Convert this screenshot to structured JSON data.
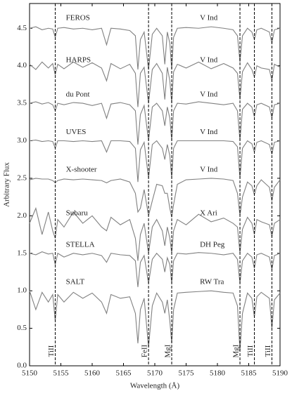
{
  "chart_data": {
    "type": "line",
    "x_label": "Wavelength (Å)",
    "y_label": "Arbitrary Flux",
    "xlim": [
      5150,
      5190
    ],
    "ylim": [
      0,
      4.83
    ],
    "xticks": [
      5150,
      5155,
      5160,
      5165,
      5170,
      5175,
      5180,
      5185,
      5190
    ],
    "yticks": [
      {
        "value": 0,
        "label": "0.0"
      },
      0.5,
      {
        "value": 1,
        "label": "1.0"
      },
      1.5,
      {
        "value": 2,
        "label": "2.0"
      },
      2.5,
      {
        "value": 3,
        "label": "3.0"
      },
      3.5,
      {
        "value": 4,
        "label": "4.0"
      },
      4.5
    ],
    "line_markers": [
      {
        "x": 5154.1,
        "label": "TiII"
      },
      {
        "x": 5169.0,
        "label": "FeII"
      },
      {
        "x": 5172.7,
        "label": "MgI"
      },
      {
        "x": 5183.6,
        "label": "MgI"
      },
      {
        "x": 5185.9,
        "label": "TiII"
      },
      {
        "x": 5188.7,
        "label": "TiII"
      }
    ],
    "x": [
      5150,
      5151,
      5152,
      5153,
      5153.7,
      5154.1,
      5154.5,
      5155.5,
      5157,
      5158.5,
      5160,
      5161.5,
      5162.3,
      5163,
      5164.5,
      5166,
      5166.9,
      5167.3,
      5167.7,
      5168.3,
      5169.0,
      5169.6,
      5170.3,
      5171.2,
      5171.6,
      5172.0,
      5172.4,
      5172.7,
      5173.0,
      5173.6,
      5175,
      5177,
      5179,
      5181,
      5182.5,
      5183.2,
      5183.6,
      5184.0,
      5184.8,
      5185.5,
      5185.9,
      5186.3,
      5187,
      5188.3,
      5188.7,
      5189.1,
      5190
    ],
    "series": [
      {
        "name": "FEROS",
        "label": "V Ind",
        "color": "#808080",
        "values": [
          4.5,
          4.52,
          4.48,
          4.5,
          4.49,
          4.38,
          4.5,
          4.51,
          4.49,
          4.5,
          4.48,
          4.5,
          4.28,
          4.5,
          4.49,
          4.47,
          4.4,
          3.95,
          4.35,
          4.45,
          3.95,
          4.42,
          4.5,
          4.4,
          4.02,
          4.45,
          4.3,
          3.95,
          4.38,
          4.5,
          4.51,
          4.5,
          4.52,
          4.5,
          4.48,
          4.4,
          4.05,
          4.4,
          4.5,
          4.45,
          4.35,
          4.48,
          4.5,
          4.45,
          4.3,
          4.48,
          4.5
        ]
      },
      {
        "name": "HARPS",
        "label": "V Ind",
        "color": "#808080",
        "values": [
          4.02,
          3.95,
          4.05,
          3.97,
          4.03,
          3.88,
          4.02,
          3.96,
          4.05,
          3.98,
          4.04,
          3.97,
          3.8,
          4.03,
          3.96,
          4.02,
          3.9,
          3.45,
          3.9,
          3.98,
          3.5,
          3.95,
          4.03,
          3.9,
          3.55,
          3.98,
          3.8,
          3.5,
          3.92,
          4.02,
          3.97,
          4.05,
          3.96,
          4.03,
          3.97,
          3.9,
          3.55,
          3.92,
          4.04,
          3.95,
          3.85,
          4.0,
          3.97,
          3.95,
          3.8,
          4.02,
          3.98
        ]
      },
      {
        "name": "du Pont",
        "label": "V Ind",
        "color": "#808080",
        "values": [
          3.5,
          3.52,
          3.49,
          3.51,
          3.48,
          3.4,
          3.5,
          3.48,
          3.51,
          3.5,
          3.47,
          3.5,
          3.3,
          3.49,
          3.51,
          3.48,
          3.4,
          2.95,
          3.35,
          3.47,
          3.0,
          3.45,
          3.5,
          3.4,
          3.2,
          3.45,
          3.3,
          3.0,
          3.4,
          3.5,
          3.49,
          3.52,
          3.5,
          3.48,
          3.5,
          3.4,
          3.0,
          3.42,
          3.5,
          3.45,
          3.32,
          3.48,
          3.5,
          3.45,
          3.3,
          3.48,
          3.5
        ]
      },
      {
        "name": "UVES",
        "label": "V Ind",
        "color": "#808080",
        "values": [
          3.0,
          3.01,
          2.99,
          3.0,
          2.99,
          2.9,
          3.0,
          3.0,
          2.99,
          3.0,
          2.99,
          3.0,
          2.85,
          3.0,
          3.0,
          2.99,
          2.9,
          2.45,
          2.88,
          2.98,
          2.5,
          2.95,
          3.0,
          2.9,
          2.75,
          2.95,
          2.8,
          2.5,
          2.9,
          3.0,
          3.0,
          3.0,
          3.0,
          3.0,
          2.99,
          2.92,
          2.5,
          2.9,
          3.0,
          2.96,
          2.85,
          2.98,
          3.0,
          2.95,
          2.82,
          2.98,
          3.0
        ]
      },
      {
        "name": "X-shooter",
        "label": "V Ind",
        "color": "#808080",
        "values": [
          2.48,
          2.5,
          2.49,
          2.49,
          2.47,
          2.44,
          2.47,
          2.49,
          2.48,
          2.49,
          2.48,
          2.47,
          2.44,
          2.47,
          2.49,
          2.45,
          2.3,
          2.05,
          2.1,
          2.35,
          2.0,
          2.2,
          2.42,
          2.4,
          2.3,
          2.3,
          2.1,
          1.98,
          2.15,
          2.42,
          2.48,
          2.49,
          2.5,
          2.49,
          2.47,
          2.3,
          2.0,
          2.25,
          2.45,
          2.4,
          2.28,
          2.4,
          2.48,
          2.38,
          2.2,
          2.38,
          2.48
        ]
      },
      {
        "name": "Subaru",
        "label": "X Ari",
        "color": "#808080",
        "values": [
          1.9,
          2.1,
          1.75,
          2.05,
          1.8,
          1.7,
          1.95,
          1.85,
          2.05,
          1.9,
          2.0,
          1.85,
          1.8,
          1.98,
          1.88,
          1.95,
          1.7,
          1.4,
          1.75,
          1.9,
          1.5,
          1.85,
          1.95,
          1.8,
          1.6,
          1.85,
          1.7,
          1.5,
          1.8,
          1.95,
          1.88,
          2.02,
          1.92,
          1.97,
          1.9,
          1.85,
          1.5,
          1.82,
          1.98,
          1.9,
          1.75,
          1.95,
          1.92,
          1.88,
          1.72,
          1.9,
          1.95
        ]
      },
      {
        "name": "STELLA",
        "label": "DH Peg",
        "color": "#808080",
        "values": [
          1.5,
          1.48,
          1.52,
          1.49,
          1.5,
          1.35,
          1.5,
          1.45,
          1.5,
          1.48,
          1.5,
          1.47,
          1.38,
          1.5,
          1.48,
          1.47,
          1.4,
          1.05,
          1.38,
          1.47,
          1.1,
          1.42,
          1.5,
          1.42,
          1.25,
          1.44,
          1.35,
          1.1,
          1.4,
          1.5,
          1.49,
          1.51,
          1.5,
          1.48,
          1.5,
          1.42,
          1.1,
          1.4,
          1.5,
          1.45,
          1.3,
          1.48,
          1.5,
          1.45,
          1.28,
          1.47,
          1.5
        ]
      },
      {
        "name": "SALT",
        "label": "RW Tra",
        "color": "#808080",
        "values": [
          1.0,
          0.75,
          0.98,
          0.85,
          0.95,
          0.6,
          0.95,
          0.85,
          0.98,
          0.9,
          0.97,
          0.85,
          0.7,
          0.95,
          0.9,
          0.92,
          0.7,
          0.3,
          0.75,
          0.9,
          0.25,
          0.8,
          0.97,
          0.85,
          0.7,
          0.88,
          0.6,
          0.3,
          0.75,
          0.97,
          0.98,
          0.99,
          1.0,
          0.98,
          0.97,
          0.8,
          0.2,
          0.7,
          0.97,
          0.9,
          0.65,
          0.92,
          0.98,
          0.9,
          0.5,
          0.88,
          0.97
        ]
      }
    ]
  }
}
